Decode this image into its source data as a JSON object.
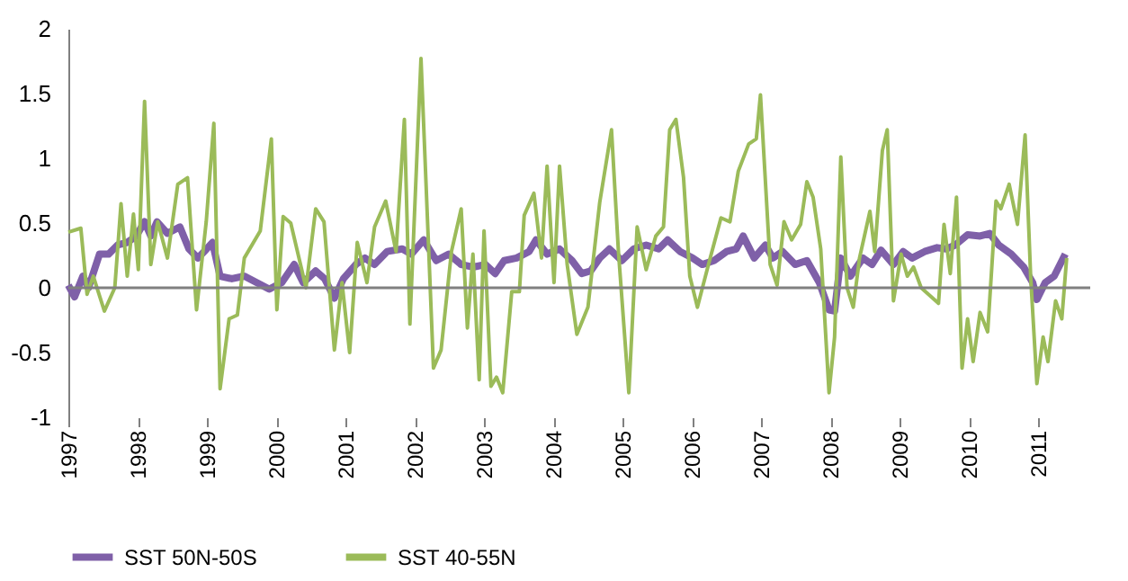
{
  "chart_data": {
    "type": "line",
    "xlim": [
      1997,
      2011.75
    ],
    "xticks": [
      1997,
      1998,
      1999,
      2000,
      2001,
      2002,
      2003,
      2004,
      2005,
      2006,
      2007,
      2008,
      2009,
      2010,
      2011
    ],
    "ylim": [
      -1,
      2
    ],
    "yticks": [
      -1,
      -0.5,
      0,
      0.5,
      1,
      1.5,
      2
    ],
    "grid": false,
    "legend": "bottom",
    "marker": "none",
    "line_style": "solid",
    "ref_lines": [
      {
        "axis": "y",
        "value": 0,
        "color": "#808080"
      }
    ],
    "series": [
      {
        "name": "SST 50N-50S",
        "color": "#7f60a8",
        "x": [
          1997.0,
          1997.09,
          1997.21,
          1997.29,
          1997.45,
          1997.58,
          1997.71,
          1997.85,
          1997.98,
          1998.1,
          1998.19,
          1998.28,
          1998.43,
          1998.61,
          1998.74,
          1998.87,
          1998.96,
          1999.08,
          1999.19,
          1999.36,
          1999.54,
          1999.72,
          1999.9,
          2000.08,
          2000.26,
          2000.39,
          2000.57,
          2000.7,
          2000.84,
          2000.97,
          2001.15,
          2001.28,
          2001.42,
          2001.6,
          2001.82,
          2001.95,
          2002.13,
          2002.31,
          2002.49,
          2002.67,
          2002.84,
          2003.02,
          2003.16,
          2003.29,
          2003.47,
          2003.65,
          2003.75,
          2003.91,
          2004.09,
          2004.27,
          2004.41,
          2004.54,
          2004.67,
          2004.81,
          2004.99,
          2005.16,
          2005.34,
          2005.52,
          2005.65,
          2005.83,
          2006.01,
          2006.15,
          2006.32,
          2006.5,
          2006.64,
          2006.74,
          2006.9,
          2007.06,
          2007.17,
          2007.31,
          2007.49,
          2007.66,
          2007.84,
          2007.98,
          2008.06,
          2008.15,
          2008.29,
          2008.47,
          2008.6,
          2008.73,
          2008.91,
          2009.05,
          2009.18,
          2009.36,
          2009.54,
          2009.67,
          2009.8,
          2009.98,
          2010.16,
          2010.3,
          2010.43,
          2010.61,
          2010.79,
          2010.92,
          2010.98,
          2011.1,
          2011.23,
          2011.39
        ],
        "values": [
          0.02,
          -0.07,
          0.09,
          0,
          0.26,
          0.26,
          0.33,
          0.35,
          0.4,
          0.51,
          0.4,
          0.51,
          0.42,
          0.47,
          0.3,
          0.23,
          0.28,
          0.35,
          0.09,
          0.07,
          0.09,
          0.04,
          -0.01,
          0.04,
          0.18,
          0.04,
          0.13,
          0.07,
          -0.08,
          0.07,
          0.18,
          0.23,
          0.18,
          0.28,
          0.3,
          0.26,
          0.37,
          0.21,
          0.26,
          0.18,
          0.16,
          0.18,
          0.11,
          0.21,
          0.23,
          0.28,
          0.37,
          0.26,
          0.3,
          0.21,
          0.11,
          0.13,
          0.23,
          0.3,
          0.21,
          0.3,
          0.33,
          0.3,
          0.37,
          0.28,
          0.23,
          0.18,
          0.21,
          0.28,
          0.3,
          0.4,
          0.23,
          0.33,
          0.23,
          0.28,
          0.18,
          0.21,
          0.04,
          -0.17,
          -0.18,
          0.23,
          0.09,
          0.23,
          0.18,
          0.29,
          0.18,
          0.28,
          0.23,
          0.28,
          0.31,
          0.3,
          0.33,
          0.41,
          0.4,
          0.42,
          0.33,
          0.26,
          0.16,
          0.04,
          -0.09,
          0.04,
          0.09,
          0.26
        ]
      },
      {
        "name": "SST 40-55N",
        "color": "#9bbb59",
        "x": [
          1997.0,
          1997.18,
          1997.27,
          1997.36,
          1997.52,
          1997.67,
          1997.76,
          1997.85,
          1997.94,
          1998.01,
          1998.1,
          1998.19,
          1998.29,
          1998.43,
          1998.58,
          1998.72,
          1998.85,
          1998.99,
          1999.1,
          1999.19,
          1999.32,
          1999.44,
          1999.54,
          1999.77,
          1999.93,
          2000.01,
          2000.1,
          2000.21,
          2000.43,
          2000.57,
          2000.69,
          2000.84,
          2000.95,
          2001.06,
          2001.17,
          2001.31,
          2001.42,
          2001.58,
          2001.73,
          2001.85,
          2001.93,
          2002.09,
          2002.27,
          2002.38,
          2002.53,
          2002.67,
          2002.76,
          2002.84,
          2002.93,
          2003.0,
          2003.1,
          2003.18,
          2003.27,
          2003.4,
          2003.51,
          2003.58,
          2003.72,
          2003.83,
          2003.91,
          2004.01,
          2004.09,
          2004.2,
          2004.34,
          2004.5,
          2004.67,
          2004.84,
          2004.94,
          2005.09,
          2005.21,
          2005.34,
          2005.48,
          2005.59,
          2005.68,
          2005.77,
          2005.88,
          2005.97,
          2006.08,
          2006.24,
          2006.42,
          2006.55,
          2006.67,
          2006.82,
          2006.93,
          2006.99,
          2007.13,
          2007.23,
          2007.33,
          2007.44,
          2007.57,
          2007.66,
          2007.75,
          2007.86,
          2007.98,
          2008.06,
          2008.15,
          2008.24,
          2008.33,
          2008.42,
          2008.57,
          2008.64,
          2008.75,
          2008.82,
          2008.91,
          2009.02,
          2009.11,
          2009.2,
          2009.31,
          2009.56,
          2009.64,
          2009.73,
          2009.82,
          2009.9,
          2009.98,
          2010.06,
          2010.16,
          2010.27,
          2010.39,
          2010.46,
          2010.58,
          2010.7,
          2010.81,
          2010.89,
          2010.98,
          2011.07,
          2011.14,
          2011.25,
          2011.34,
          2011.41
        ],
        "values": [
          0.43,
          0.46,
          -0.05,
          0.09,
          -0.18,
          0,
          0.65,
          0.09,
          0.57,
          0.14,
          1.44,
          0.18,
          0.51,
          0.23,
          0.8,
          0.85,
          -0.17,
          0.51,
          1.27,
          -0.78,
          -0.24,
          -0.21,
          0.23,
          0.44,
          1.15,
          -0.17,
          0.55,
          0.5,
          0,
          0.61,
          0.51,
          -0.48,
          0.04,
          -0.5,
          0.35,
          0.04,
          0.47,
          0.67,
          0.28,
          1.3,
          -0.28,
          1.77,
          -0.62,
          -0.48,
          0.28,
          0.61,
          -0.31,
          0.26,
          -0.71,
          0.44,
          -0.76,
          -0.69,
          -0.81,
          -0.03,
          -0.03,
          0.56,
          0.73,
          0.23,
          0.94,
          0.04,
          0.94,
          0.18,
          -0.36,
          -0.15,
          0.66,
          1.22,
          0.28,
          -0.81,
          0.47,
          0.14,
          0.4,
          0.47,
          1.22,
          1.3,
          0.85,
          0.09,
          -0.15,
          0.18,
          0.54,
          0.51,
          0.9,
          1.11,
          1.15,
          1.49,
          0.18,
          0.02,
          0.51,
          0.37,
          0.49,
          0.82,
          0.7,
          0.3,
          -0.81,
          -0.38,
          1.01,
          0,
          -0.15,
          0.23,
          0.59,
          0.28,
          1.06,
          1.22,
          -0.1,
          0.26,
          0.09,
          0.16,
          0,
          -0.12,
          0.49,
          0.11,
          0.7,
          -0.62,
          -0.24,
          -0.57,
          -0.19,
          -0.34,
          0.67,
          0.61,
          0.8,
          0.49,
          1.18,
          0.09,
          -0.74,
          -0.38,
          -0.57,
          -0.1,
          -0.24,
          0.23
        ]
      }
    ]
  }
}
